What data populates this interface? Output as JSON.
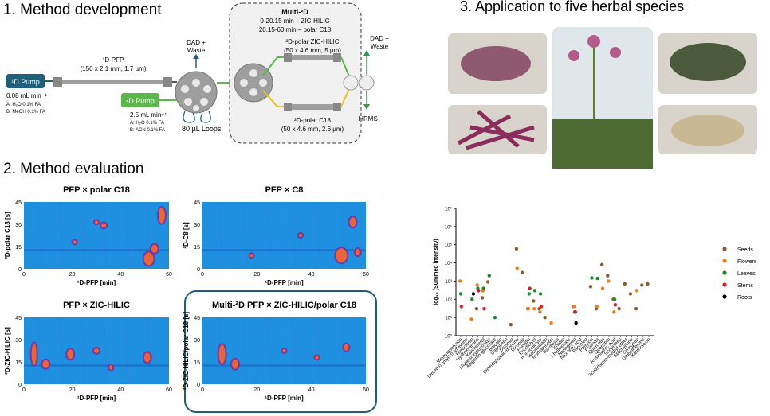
{
  "panels": {
    "dev_title": "1. Method development",
    "eval_title": "2. Method evaluation",
    "app_title": "3. Application to five herbal species"
  },
  "diagram": {
    "d1_pump": "¹D Pump",
    "d1_flow": "0.08 mL min⁻¹",
    "d1_solvent_a": "A: H₂O 0.1% FA",
    "d1_solvent_b": "B: MeOH 0.1% FA",
    "d1_column": "¹D-PFP",
    "d1_column_dims": "(150 x 2.1 mm, 1.7 µm)",
    "dad_waste_top": "DAD +\nWaste",
    "column_selector": "Column\nselector",
    "d2_pump": "²D Pump",
    "d2_flow": "2.5 mL min⁻¹",
    "d2_solvent_a": "A: H₂O 0.1% FA",
    "d2_solvent_b": "B: ACN 0.1% FA",
    "loops": "80 µL Loops",
    "multi2d_title": "Multi-²D",
    "multi2d_line1": "0-20.15 min – ZIC-HILIC",
    "multi2d_line2": "20.15-60 min – polar C18",
    "zic_hilic_label": "²D-polar ZIC-HILIC",
    "zic_hilic_dims": "(50 x 4.6 mm, 5 µm)",
    "c18_label": "²D-polar C18",
    "c18_dims": "(50 x 4.6 mm, 2.6 µm)",
    "dad_waste_right": "DAD +\nWaste",
    "hrms": "HRMS"
  },
  "heatmaps": [
    {
      "title": "PFP × polar C18",
      "ylabel": "²D-polar C18 [s]",
      "xlabel": "¹D-PFP [min]",
      "yticks": [
        "0",
        "15",
        "30",
        "45"
      ],
      "xticks": [
        "0",
        "20",
        "40",
        "60"
      ]
    },
    {
      "title": "PFP × C8",
      "ylabel": "²D-C8 [s]",
      "xlabel": "¹D-PFP [min]",
      "yticks": [
        "0",
        "15",
        "30",
        "45"
      ],
      "xticks": [
        "0",
        "20",
        "40",
        "60"
      ]
    },
    {
      "title": "PFP × ZIC-HILIC",
      "ylabel": "²D-ZIC-HILIC [s]",
      "xlabel": "¹D-PFP [min]",
      "yticks": [
        "0",
        "15",
        "30",
        "45"
      ],
      "xticks": [
        "0",
        "20",
        "40",
        "60"
      ]
    },
    {
      "title": "Multi-²D PFP × ZIC-HILIC/polar C18",
      "ylabel": "²D-ZIC-HILIC/polar C18 [s]",
      "xlabel": "¹D-PFP [min]",
      "yticks": [
        "0",
        "15",
        "30",
        "45"
      ],
      "xticks": [
        "0",
        "20",
        "40",
        "60"
      ]
    }
  ],
  "colors": {
    "seeds": "#8b5a2b",
    "flowers": "#ef7d22",
    "leaves": "#1a8a2a",
    "stems": "#e01b24",
    "roots": "#000000",
    "teal": "#1f5f7a",
    "green_pump": "#5cb84a",
    "heat_bg": "#1f8fe0"
  },
  "chart_data": {
    "type": "scatter",
    "title": "",
    "ylabel": "log₁₀ (Summed intensity)",
    "y_scale": "log",
    "ylim": [
      1,
      10000000
    ],
    "ytick_labels": [
      "10⁰",
      "10¹",
      "10²",
      "10³",
      "10⁴",
      "10⁵",
      "10⁶",
      "10⁷"
    ],
    "legend_position": "right",
    "categories": [
      "Methylquercetin",
      "Dimethoxyhydroxyflavone",
      "Heraclenin",
      "Hydroxyamirin",
      "Kaempferol",
      "Maniosoxypuzoside",
      "Apigenin-glucoside",
      "Baicalin",
      "Daphnetin",
      "Diosmin",
      "Dimethylsaniordienone",
      "Diosmin",
      "Fraxidin",
      "Eriodictyol",
      "Isoneodictyol",
      "Isoorientalin",
      "Isorhamnetin",
      "Isovitexin",
      "Khellin",
      "Khellinoside",
      "Naringenin",
      "Nicotinic acid",
      "Psoralen",
      "Pteryxin",
      "Psoralin",
      "Quercetin",
      "Quercitrin",
      "Rosmarinic acid",
      "Scopoletin",
      "Scutellarein-methyl ether",
      "Stachydrine",
      "Syringetin",
      "Umbelliferone",
      "Xanthotoxin"
    ],
    "series": [
      {
        "name": "Seeds",
        "color": "#8b5a2b",
        "values": [
          null,
          null,
          null,
          30,
          120,
          900,
          null,
          null,
          null,
          4,
          60000,
          3000,
          30,
          80,
          30,
          10,
          null,
          null,
          null,
          null,
          40,
          null,
          null,
          500,
          30,
          8000,
          2000,
          100,
          30,
          700,
          200,
          30,
          600,
          700
        ]
      },
      {
        "name": "Flowers",
        "color": "#ef7d22",
        "values": [
          1000,
          null,
          8,
          600,
          300,
          null,
          null,
          null,
          null,
          null,
          5000,
          null,
          30,
          30,
          20,
          null,
          5,
          null,
          null,
          null,
          40,
          null,
          null,
          null,
          40,
          400,
          1000,
          20,
          null,
          null,
          null,
          300,
          null,
          null
        ]
      },
      {
        "name": "Leaves",
        "color": "#1a8a2a",
        "values": [
          200,
          null,
          100,
          400,
          400,
          2000,
          10,
          null,
          null,
          null,
          null,
          null,
          200,
          300,
          200,
          null,
          null,
          null,
          null,
          null,
          20,
          null,
          null,
          1500,
          1400,
          null,
          null,
          100,
          null,
          null,
          null,
          null,
          null,
          null
        ]
      },
      {
        "name": "Stems",
        "color": "#e01b24",
        "values": [
          40,
          null,
          null,
          300,
          30,
          null,
          null,
          null,
          null,
          null,
          null,
          null,
          400,
          null,
          40,
          null,
          null,
          null,
          null,
          null,
          20,
          null,
          null,
          null,
          null,
          null,
          null,
          50,
          null,
          null,
          null,
          null,
          null,
          null
        ]
      },
      {
        "name": "Roots",
        "color": "#000000",
        "values": [
          null,
          null,
          200,
          null,
          null,
          null,
          null,
          null,
          null,
          null,
          null,
          null,
          null,
          null,
          null,
          null,
          null,
          null,
          null,
          null,
          5,
          null,
          null,
          null,
          null,
          null,
          null,
          null,
          null,
          null,
          null,
          null,
          null,
          null
        ]
      }
    ]
  }
}
